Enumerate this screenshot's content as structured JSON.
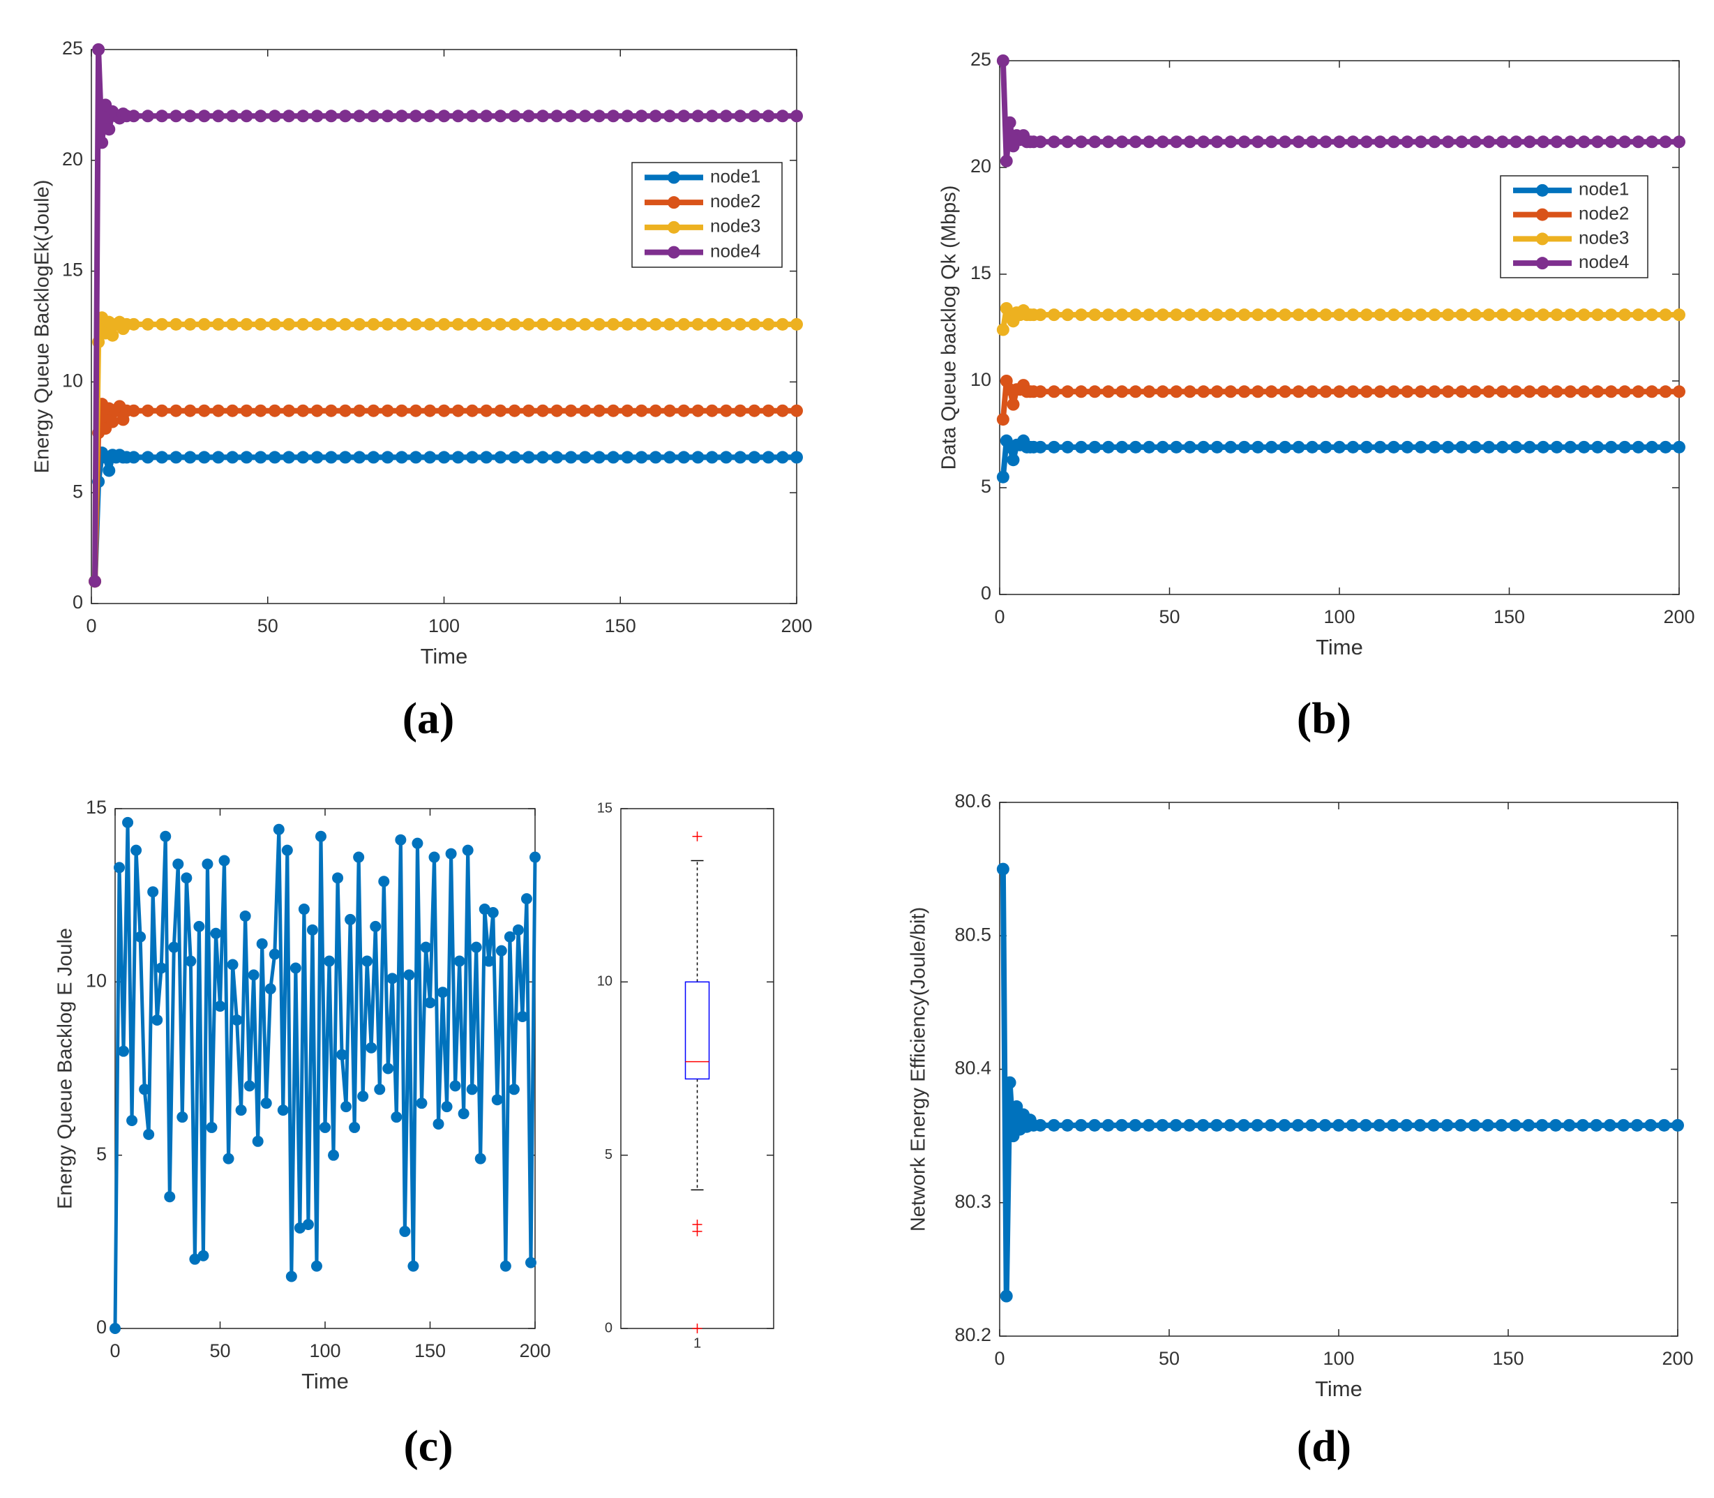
{
  "chart_data": [
    {
      "type": "line",
      "panel_label": "(a)",
      "xlabel": "Time",
      "ylabel": "Energy Queue BacklogEk(Joule)",
      "xlim": [
        0,
        200
      ],
      "xticks": [
        0,
        50,
        100,
        150,
        200
      ],
      "ylim": [
        0,
        25
      ],
      "yticks": [
        0,
        5,
        10,
        15,
        20,
        25
      ],
      "legend": "upper right",
      "x": [
        1,
        2,
        3,
        4,
        5,
        6,
        7,
        8,
        9,
        10,
        12,
        16,
        20,
        24,
        28,
        32,
        36,
        40,
        44,
        48,
        52,
        56,
        60,
        64,
        68,
        72,
        76,
        80,
        84,
        88,
        92,
        96,
        100,
        104,
        108,
        112,
        116,
        120,
        124,
        128,
        132,
        136,
        140,
        144,
        148,
        152,
        156,
        160,
        164,
        168,
        172,
        176,
        180,
        184,
        188,
        192,
        196,
        200
      ],
      "series": [
        {
          "name": "node1",
          "color": "#0072bd",
          "values": [
            1,
            5.5,
            6.8,
            6.6,
            6.0,
            6.7,
            6.6,
            6.7,
            6.6,
            6.6,
            6.6,
            6.6,
            6.6,
            6.6,
            6.6,
            6.6,
            6.6,
            6.6,
            6.6,
            6.6,
            6.6,
            6.6,
            6.6,
            6.6,
            6.6,
            6.6,
            6.6,
            6.6,
            6.6,
            6.6,
            6.6,
            6.6,
            6.6,
            6.6,
            6.6,
            6.6,
            6.6,
            6.6,
            6.6,
            6.6,
            6.6,
            6.6,
            6.6,
            6.6,
            6.6,
            6.6,
            6.6,
            6.6,
            6.6,
            6.6,
            6.6,
            6.6,
            6.6,
            6.6,
            6.6,
            6.6,
            6.6,
            6.6
          ]
        },
        {
          "name": "node2",
          "color": "#d95319",
          "values": [
            1,
            7.7,
            9.0,
            7.9,
            8.8,
            8.2,
            8.7,
            8.9,
            8.3,
            8.7,
            8.7,
            8.7,
            8.7,
            8.7,
            8.7,
            8.7,
            8.7,
            8.7,
            8.7,
            8.7,
            8.7,
            8.7,
            8.7,
            8.7,
            8.7,
            8.7,
            8.7,
            8.7,
            8.7,
            8.7,
            8.7,
            8.7,
            8.7,
            8.7,
            8.7,
            8.7,
            8.7,
            8.7,
            8.7,
            8.7,
            8.7,
            8.7,
            8.7,
            8.7,
            8.7,
            8.7,
            8.7,
            8.7,
            8.7,
            8.7,
            8.7,
            8.7,
            8.7,
            8.7,
            8.7,
            8.7,
            8.7,
            8.7
          ]
        },
        {
          "name": "node3",
          "color": "#edb120",
          "values": [
            1,
            11.8,
            12.9,
            12.2,
            12.7,
            12.1,
            12.6,
            12.7,
            12.4,
            12.6,
            12.6,
            12.6,
            12.6,
            12.6,
            12.6,
            12.6,
            12.6,
            12.6,
            12.6,
            12.6,
            12.6,
            12.6,
            12.6,
            12.6,
            12.6,
            12.6,
            12.6,
            12.6,
            12.6,
            12.6,
            12.6,
            12.6,
            12.6,
            12.6,
            12.6,
            12.6,
            12.6,
            12.6,
            12.6,
            12.6,
            12.6,
            12.6,
            12.6,
            12.6,
            12.6,
            12.6,
            12.6,
            12.6,
            12.6,
            12.6,
            12.6,
            12.6,
            12.6,
            12.6,
            12.6,
            12.6,
            12.6,
            12.6
          ]
        },
        {
          "name": "node4",
          "color": "#7e2f8e",
          "values": [
            1,
            25,
            20.8,
            22.5,
            21.4,
            22.2,
            22.0,
            21.9,
            22.1,
            22.0,
            22,
            22,
            22,
            22,
            22,
            22,
            22,
            22,
            22,
            22,
            22,
            22,
            22,
            22,
            22,
            22,
            22,
            22,
            22,
            22,
            22,
            22,
            22,
            22,
            22,
            22,
            22,
            22,
            22,
            22,
            22,
            22,
            22,
            22,
            22,
            22,
            22,
            22,
            22,
            22,
            22,
            22,
            22,
            22,
            22,
            22,
            22,
            22
          ]
        }
      ]
    },
    {
      "type": "line",
      "panel_label": "(b)",
      "xlabel": "Time",
      "ylabel": "Data Queue backlog Qk (Mbps)",
      "xlim": [
        0,
        200
      ],
      "xticks": [
        0,
        50,
        100,
        150,
        200
      ],
      "ylim": [
        0,
        25
      ],
      "yticks": [
        0,
        5,
        10,
        15,
        20,
        25
      ],
      "legend": "upper right",
      "x": [
        1,
        2,
        3,
        4,
        5,
        6,
        7,
        8,
        9,
        10,
        12,
        16,
        20,
        24,
        28,
        32,
        36,
        40,
        44,
        48,
        52,
        56,
        60,
        64,
        68,
        72,
        76,
        80,
        84,
        88,
        92,
        96,
        100,
        104,
        108,
        112,
        116,
        120,
        124,
        128,
        132,
        136,
        140,
        144,
        148,
        152,
        156,
        160,
        164,
        168,
        172,
        176,
        180,
        184,
        188,
        192,
        196,
        200
      ],
      "series": [
        {
          "name": "node1",
          "color": "#0072bd",
          "values": [
            5.5,
            7.2,
            6.9,
            6.3,
            7.0,
            7.0,
            7.2,
            6.9,
            6.9,
            6.9,
            6.9,
            6.9,
            6.9,
            6.9,
            6.9,
            6.9,
            6.9,
            6.9,
            6.9,
            6.9,
            6.9,
            6.9,
            6.9,
            6.9,
            6.9,
            6.9,
            6.9,
            6.9,
            6.9,
            6.9,
            6.9,
            6.9,
            6.9,
            6.9,
            6.9,
            6.9,
            6.9,
            6.9,
            6.9,
            6.9,
            6.9,
            6.9,
            6.9,
            6.9,
            6.9,
            6.9,
            6.9,
            6.9,
            6.9,
            6.9,
            6.9,
            6.9,
            6.9,
            6.9,
            6.9,
            6.9,
            6.9,
            6.9
          ]
        },
        {
          "name": "node2",
          "color": "#d95319",
          "values": [
            8.2,
            10.0,
            9.6,
            8.9,
            9.6,
            9.6,
            9.8,
            9.5,
            9.5,
            9.5,
            9.5,
            9.5,
            9.5,
            9.5,
            9.5,
            9.5,
            9.5,
            9.5,
            9.5,
            9.5,
            9.5,
            9.5,
            9.5,
            9.5,
            9.5,
            9.5,
            9.5,
            9.5,
            9.5,
            9.5,
            9.5,
            9.5,
            9.5,
            9.5,
            9.5,
            9.5,
            9.5,
            9.5,
            9.5,
            9.5,
            9.5,
            9.5,
            9.5,
            9.5,
            9.5,
            9.5,
            9.5,
            9.5,
            9.5,
            9.5,
            9.5,
            9.5,
            9.5,
            9.5,
            9.5,
            9.5,
            9.5,
            9.5
          ]
        },
        {
          "name": "node3",
          "color": "#edb120",
          "values": [
            12.4,
            13.4,
            13.0,
            12.8,
            13.2,
            13.1,
            13.3,
            13.1,
            13.1,
            13.1,
            13.1,
            13.1,
            13.1,
            13.1,
            13.1,
            13.1,
            13.1,
            13.1,
            13.1,
            13.1,
            13.1,
            13.1,
            13.1,
            13.1,
            13.1,
            13.1,
            13.1,
            13.1,
            13.1,
            13.1,
            13.1,
            13.1,
            13.1,
            13.1,
            13.1,
            13.1,
            13.1,
            13.1,
            13.1,
            13.1,
            13.1,
            13.1,
            13.1,
            13.1,
            13.1,
            13.1,
            13.1,
            13.1,
            13.1,
            13.1,
            13.1,
            13.1,
            13.1,
            13.1,
            13.1,
            13.1,
            13.1,
            13.1
          ]
        },
        {
          "name": "node4",
          "color": "#7e2f8e",
          "values": [
            25,
            20.3,
            22.1,
            21.0,
            21.5,
            21.3,
            21.5,
            21.2,
            21.2,
            21.2,
            21.2,
            21.2,
            21.2,
            21.2,
            21.2,
            21.2,
            21.2,
            21.2,
            21.2,
            21.2,
            21.2,
            21.2,
            21.2,
            21.2,
            21.2,
            21.2,
            21.2,
            21.2,
            21.2,
            21.2,
            21.2,
            21.2,
            21.2,
            21.2,
            21.2,
            21.2,
            21.2,
            21.2,
            21.2,
            21.2,
            21.2,
            21.2,
            21.2,
            21.2,
            21.2,
            21.2,
            21.2,
            21.2,
            21.2,
            21.2,
            21.2,
            21.2,
            21.2,
            21.2,
            21.2,
            21.2,
            21.2,
            21.2
          ]
        }
      ]
    },
    {
      "type": "line",
      "panel_label": "(c)",
      "xlabel": "Time",
      "ylabel": "Energy  Queue Backlog E   Joule",
      "xlim": [
        0,
        200
      ],
      "xticks": [
        0,
        50,
        100,
        150,
        200
      ],
      "ylim": [
        0,
        15
      ],
      "yticks": [
        0,
        5,
        10,
        15
      ],
      "x": [
        0,
        2,
        4,
        6,
        8,
        10,
        12,
        14,
        16,
        18,
        20,
        22,
        24,
        26,
        28,
        30,
        32,
        34,
        36,
        38,
        40,
        42,
        44,
        46,
        48,
        50,
        52,
        54,
        56,
        58,
        60,
        62,
        64,
        66,
        68,
        70,
        72,
        74,
        76,
        78,
        80,
        82,
        84,
        86,
        88,
        90,
        92,
        94,
        96,
        98,
        100,
        102,
        104,
        106,
        108,
        110,
        112,
        114,
        116,
        118,
        120,
        122,
        124,
        126,
        128,
        130,
        132,
        134,
        136,
        138,
        140,
        142,
        144,
        146,
        148,
        150,
        152,
        154,
        156,
        158,
        160,
        162,
        164,
        166,
        168,
        170,
        172,
        174,
        176,
        178,
        180,
        182,
        184,
        186,
        188,
        190,
        192,
        194,
        196,
        198,
        200
      ],
      "series": [
        {
          "name": "node1",
          "color": "#0072bd",
          "values": [
            0,
            13.3,
            8.0,
            14.6,
            6.0,
            13.8,
            11.3,
            6.9,
            5.6,
            12.6,
            8.9,
            10.4,
            14.2,
            3.8,
            11.0,
            13.4,
            6.1,
            13.0,
            10.6,
            2.0,
            11.6,
            2.1,
            13.4,
            5.8,
            11.4,
            9.3,
            13.5,
            4.9,
            10.5,
            8.9,
            6.3,
            11.9,
            7.0,
            10.2,
            5.4,
            11.1,
            6.5,
            9.8,
            10.8,
            14.4,
            6.3,
            13.8,
            1.5,
            10.4,
            2.9,
            12.1,
            3.0,
            11.5,
            1.8,
            14.2,
            5.8,
            10.6,
            5.0,
            13.0,
            7.9,
            6.4,
            11.8,
            5.8,
            13.6,
            6.7,
            10.6,
            8.1,
            11.6,
            6.9,
            12.9,
            7.5,
            10.1,
            6.1,
            14.1,
            2.8,
            10.2,
            1.8,
            14.0,
            6.5,
            11.0,
            9.4,
            13.6,
            5.9,
            9.7,
            6.4,
            13.7,
            7.0,
            10.6,
            6.2,
            13.8,
            6.9,
            11.0,
            4.9,
            12.1,
            10.6,
            12.0,
            6.6,
            10.9,
            1.8,
            11.3,
            6.9,
            11.5,
            9.0,
            12.4,
            1.9,
            13.6
          ]
        }
      ]
    },
    {
      "type": "box",
      "categories": [
        "1"
      ],
      "ylim": [
        0,
        15
      ],
      "yticks": [
        0,
        5,
        10,
        15
      ],
      "color": "#0000ff",
      "median_color": "#ff0000",
      "box": {
        "whisker_low": 4,
        "q1": 7.2,
        "median": 7.7,
        "q3": 10,
        "whisker_high": 13.5,
        "outliers": [
          14.2,
          3.0,
          2.8,
          0
        ]
      }
    },
    {
      "type": "line",
      "panel_label": "(d)",
      "xlabel": "Time",
      "ylabel": "Network Energy Efficiency(Joule/bit)",
      "xlim": [
        0,
        200
      ],
      "xticks": [
        0,
        50,
        100,
        150,
        200
      ],
      "ylim": [
        80.2,
        80.6
      ],
      "yticks": [
        80.2,
        80.3,
        80.4,
        80.5,
        80.6
      ],
      "x": [
        1,
        2,
        3,
        4,
        5,
        6,
        7,
        8,
        9,
        10,
        12,
        16,
        20,
        24,
        28,
        32,
        36,
        40,
        44,
        48,
        52,
        56,
        60,
        64,
        68,
        72,
        76,
        80,
        84,
        88,
        92,
        96,
        100,
        104,
        108,
        112,
        116,
        120,
        124,
        128,
        132,
        136,
        140,
        144,
        148,
        152,
        156,
        160,
        164,
        168,
        172,
        176,
        180,
        184,
        188,
        192,
        196,
        200
      ],
      "series": [
        {
          "name": "efficiency",
          "color": "#0072bd",
          "values": [
            80.55,
            80.23,
            80.39,
            80.35,
            80.372,
            80.355,
            80.366,
            80.357,
            80.362,
            80.358,
            80.358,
            80.358,
            80.358,
            80.358,
            80.358,
            80.358,
            80.358,
            80.358,
            80.358,
            80.358,
            80.358,
            80.358,
            80.358,
            80.358,
            80.358,
            80.358,
            80.358,
            80.358,
            80.358,
            80.358,
            80.358,
            80.358,
            80.358,
            80.358,
            80.358,
            80.358,
            80.358,
            80.358,
            80.358,
            80.358,
            80.358,
            80.358,
            80.358,
            80.358,
            80.358,
            80.358,
            80.358,
            80.358,
            80.358,
            80.358,
            80.358,
            80.358,
            80.358,
            80.358,
            80.358,
            80.358,
            80.358,
            80.358
          ]
        }
      ]
    }
  ]
}
